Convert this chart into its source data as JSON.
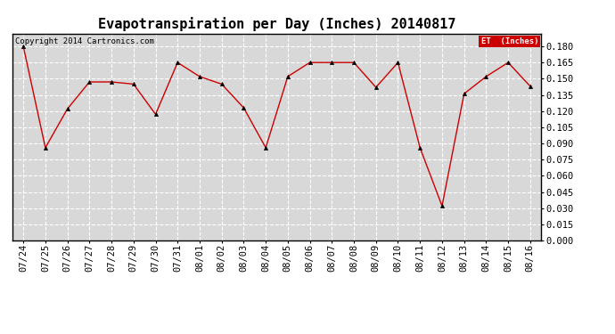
{
  "title": "Evapotranspiration per Day (Inches) 20140817",
  "copyright_text": "Copyright 2014 Cartronics.com",
  "legend_label": "ET  (Inches)",
  "x_labels": [
    "07/24",
    "07/25",
    "07/26",
    "07/27",
    "07/28",
    "07/29",
    "07/30",
    "07/31",
    "08/01",
    "08/02",
    "08/03",
    "08/04",
    "08/05",
    "08/06",
    "08/07",
    "08/08",
    "08/09",
    "08/10",
    "08/11",
    "08/12",
    "08/13",
    "08/14",
    "08/15",
    "08/16"
  ],
  "y_values": [
    0.18,
    0.086,
    0.122,
    0.147,
    0.147,
    0.145,
    0.117,
    0.165,
    0.152,
    0.145,
    0.123,
    0.086,
    0.152,
    0.165,
    0.165,
    0.165,
    0.142,
    0.165,
    0.086,
    0.032,
    0.136,
    0.152,
    0.165,
    0.143
  ],
  "line_color": "#cc0000",
  "marker_color": "#000000",
  "background_color": "#ffffff",
  "plot_bg_color": "#d8d8d8",
  "grid_color": "#ffffff",
  "ylim": [
    0.0,
    0.192
  ],
  "yticks": [
    0.0,
    0.015,
    0.03,
    0.045,
    0.06,
    0.075,
    0.09,
    0.105,
    0.12,
    0.135,
    0.15,
    0.165,
    0.18
  ],
  "legend_bg": "#cc0000",
  "legend_text_color": "#ffffff",
  "title_fontsize": 11,
  "axis_fontsize": 7.5,
  "copyright_fontsize": 6.5
}
